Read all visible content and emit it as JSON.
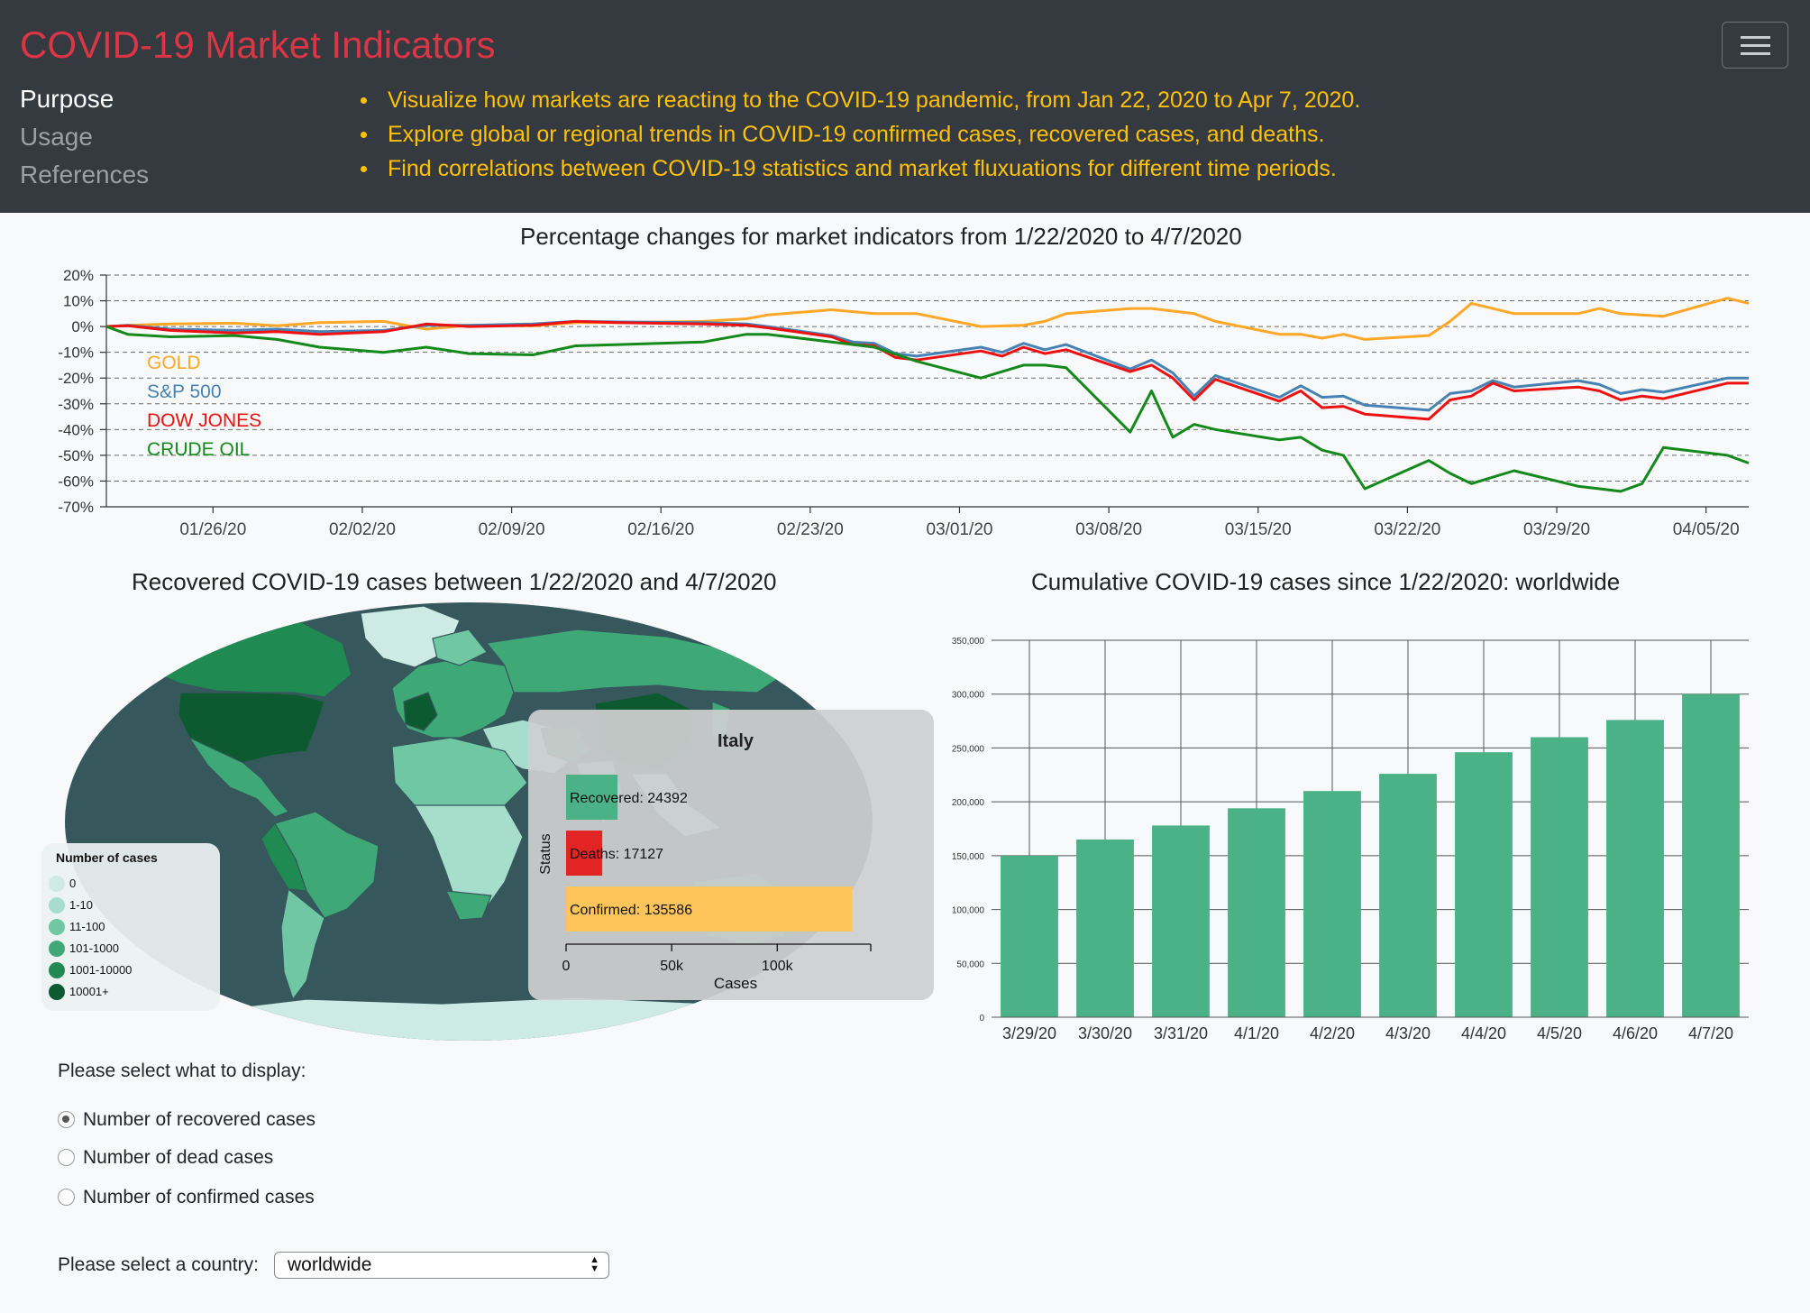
{
  "header": {
    "brand": "COVID-19 Market Indicators",
    "nav": [
      {
        "label": "Purpose",
        "active": true
      },
      {
        "label": "Usage",
        "active": false
      },
      {
        "label": "References",
        "active": false
      }
    ],
    "bullets": [
      "Visualize how markets are reacting to the COVID-19 pandemic, from Jan 22, 2020 to Apr 7, 2020.",
      "Explore global or regional trends in COVID-19 confirmed cases, recovered cases, and deaths.",
      "Find correlations between COVID-19 statistics and market fluxuations for different time periods."
    ],
    "menu_icon": "hamburger-icon"
  },
  "market_chart": {
    "title": "Percentage changes for market indicators from 1/22/2020 to 4/7/2020"
  },
  "map_section": {
    "title": "Recovered COVID-19 cases between 1/22/2020 and 4/7/2020",
    "legend": {
      "title": "Number of cases",
      "items": [
        {
          "label": "0",
          "color": "#cdebe4"
        },
        {
          "label": "1-10",
          "color": "#a7ddcb"
        },
        {
          "label": "11-100",
          "color": "#6fc7a4"
        },
        {
          "label": "101-1000",
          "color": "#3ea877"
        },
        {
          "label": "1001-10000",
          "color": "#1f8a52"
        },
        {
          "label": "10001+",
          "color": "#0d5a30"
        }
      ]
    },
    "ocean_color": "#36575c"
  },
  "cumulative_chart": {
    "title": "Cumulative COVID-19 cases since 1/22/2020: worldwide"
  },
  "tooltip": {
    "country": "Italy"
  },
  "controls": {
    "display_prompt": "Please select what to display:",
    "options": [
      {
        "label": "Number of recovered cases",
        "checked": true
      },
      {
        "label": "Number of dead cases",
        "checked": false
      },
      {
        "label": "Number of confirmed cases",
        "checked": false
      }
    ],
    "country_prompt": "Please select a country:",
    "country_value": "worldwide"
  },
  "chart_data": [
    {
      "type": "line",
      "title": "Percentage changes for market indicators from 1/22/2020 to 4/7/2020",
      "xlabel": "",
      "ylabel": "",
      "ylim": [
        -70,
        20
      ],
      "yticks": [
        "20%",
        "10%",
        "0%",
        "-10%",
        "-20%",
        "-30%",
        "-40%",
        "-50%",
        "-60%",
        "-70%"
      ],
      "xticks": [
        "01/26/20",
        "02/02/20",
        "02/09/20",
        "02/16/20",
        "02/23/20",
        "03/01/20",
        "03/08/20",
        "03/15/20",
        "03/22/20",
        "03/29/20",
        "04/05/20"
      ],
      "xrange": [
        "2020-01-21",
        "2020-04-07"
      ],
      "grid": "horizontal-dashed",
      "legend_position": "left, inside plot",
      "series": [
        {
          "name": "GOLD",
          "color": "#ffa726",
          "x": [
            "2020-01-21",
            "2020-01-22",
            "2020-01-24",
            "2020-01-27",
            "2020-01-29",
            "2020-01-31",
            "2020-02-03",
            "2020-02-05",
            "2020-02-07",
            "2020-02-10",
            "2020-02-12",
            "2020-02-14",
            "2020-02-18",
            "2020-02-20",
            "2020-02-21",
            "2020-02-24",
            "2020-02-26",
            "2020-02-28",
            "2020-03-02",
            "2020-03-04",
            "2020-03-05",
            "2020-03-06",
            "2020-03-09",
            "2020-03-10",
            "2020-03-12",
            "2020-03-13",
            "2020-03-16",
            "2020-03-17",
            "2020-03-18",
            "2020-03-19",
            "2020-03-20",
            "2020-03-23",
            "2020-03-24",
            "2020-03-25",
            "2020-03-27",
            "2020-03-30",
            "2020-03-31",
            "2020-04-01",
            "2020-04-03",
            "2020-04-06",
            "2020-04-07"
          ],
          "y": [
            0,
            0.5,
            1,
            1.3,
            0.3,
            1.5,
            2,
            -1,
            0.5,
            0.3,
            1.5,
            1.5,
            2,
            3,
            4.5,
            6.5,
            5,
            5,
            0,
            0.5,
            2,
            5,
            7,
            7,
            5,
            2,
            -3,
            -3,
            -4.5,
            -3,
            -5,
            -3.5,
            2,
            9,
            5,
            5,
            7,
            5,
            4,
            11,
            9
          ]
        },
        {
          "name": "S&P 500",
          "color": "#4682b4",
          "x": [
            "2020-01-21",
            "2020-01-22",
            "2020-01-24",
            "2020-01-27",
            "2020-01-29",
            "2020-01-31",
            "2020-02-03",
            "2020-02-05",
            "2020-02-07",
            "2020-02-10",
            "2020-02-12",
            "2020-02-14",
            "2020-02-18",
            "2020-02-20",
            "2020-02-21",
            "2020-02-24",
            "2020-02-25",
            "2020-02-26",
            "2020-02-27",
            "2020-02-28",
            "2020-03-02",
            "2020-03-03",
            "2020-03-04",
            "2020-03-05",
            "2020-03-06",
            "2020-03-09",
            "2020-03-10",
            "2020-03-11",
            "2020-03-12",
            "2020-03-13",
            "2020-03-16",
            "2020-03-17",
            "2020-03-18",
            "2020-03-19",
            "2020-03-20",
            "2020-03-23",
            "2020-03-24",
            "2020-03-25",
            "2020-03-26",
            "2020-03-27",
            "2020-03-30",
            "2020-03-31",
            "2020-04-01",
            "2020-04-02",
            "2020-04-03",
            "2020-04-06",
            "2020-04-07"
          ],
          "y": [
            0,
            0.5,
            -1,
            -1.5,
            -1,
            -2,
            -1.5,
            0.5,
            0.5,
            1,
            2,
            1.8,
            1.5,
            1,
            0,
            -3.5,
            -6,
            -6.5,
            -10.5,
            -11.5,
            -8,
            -10,
            -6.5,
            -9,
            -7,
            -16.5,
            -13,
            -18,
            -27,
            -19,
            -27.5,
            -23,
            -27.5,
            -27,
            -30.5,
            -32.5,
            -26,
            -25,
            -21,
            -23.5,
            -21,
            -22.5,
            -26,
            -24.5,
            -25.5,
            -20,
            -20
          ]
        },
        {
          "name": "DOW JONES",
          "color": "#ee1111",
          "x": [
            "2020-01-21",
            "2020-01-22",
            "2020-01-24",
            "2020-01-27",
            "2020-01-29",
            "2020-01-31",
            "2020-02-03",
            "2020-02-05",
            "2020-02-07",
            "2020-02-10",
            "2020-02-12",
            "2020-02-14",
            "2020-02-18",
            "2020-02-20",
            "2020-02-21",
            "2020-02-24",
            "2020-02-25",
            "2020-02-26",
            "2020-02-27",
            "2020-02-28",
            "2020-03-02",
            "2020-03-03",
            "2020-03-04",
            "2020-03-05",
            "2020-03-06",
            "2020-03-09",
            "2020-03-10",
            "2020-03-11",
            "2020-03-12",
            "2020-03-13",
            "2020-03-16",
            "2020-03-17",
            "2020-03-18",
            "2020-03-19",
            "2020-03-20",
            "2020-03-23",
            "2020-03-24",
            "2020-03-25",
            "2020-03-26",
            "2020-03-27",
            "2020-03-30",
            "2020-03-31",
            "2020-04-01",
            "2020-04-02",
            "2020-04-03",
            "2020-04-06",
            "2020-04-07"
          ],
          "y": [
            0,
            0.3,
            -1.5,
            -2.5,
            -2,
            -3,
            -2,
            1,
            0,
            0.5,
            2,
            1.5,
            1,
            0.5,
            -0.5,
            -4,
            -7,
            -7.5,
            -12,
            -13,
            -9.5,
            -11.5,
            -8,
            -10.5,
            -9,
            -17.5,
            -15,
            -20,
            -28.5,
            -20.5,
            -29,
            -25,
            -31.5,
            -31,
            -34,
            -36,
            -28.5,
            -27,
            -22,
            -25,
            -23.5,
            -25,
            -28.5,
            -27,
            -28,
            -22,
            -22
          ]
        },
        {
          "name": "CRUDE OIL",
          "color": "#138a1b",
          "x": [
            "2020-01-21",
            "2020-01-22",
            "2020-01-24",
            "2020-01-27",
            "2020-01-29",
            "2020-01-31",
            "2020-02-03",
            "2020-02-05",
            "2020-02-07",
            "2020-02-10",
            "2020-02-12",
            "2020-02-14",
            "2020-02-18",
            "2020-02-20",
            "2020-02-21",
            "2020-02-24",
            "2020-02-26",
            "2020-02-28",
            "2020-03-02",
            "2020-03-04",
            "2020-03-05",
            "2020-03-06",
            "2020-03-09",
            "2020-03-10",
            "2020-03-11",
            "2020-03-12",
            "2020-03-13",
            "2020-03-16",
            "2020-03-17",
            "2020-03-18",
            "2020-03-19",
            "2020-03-20",
            "2020-03-23",
            "2020-03-24",
            "2020-03-25",
            "2020-03-27",
            "2020-03-30",
            "2020-03-31",
            "2020-04-01",
            "2020-04-02",
            "2020-04-03",
            "2020-04-06",
            "2020-04-07"
          ],
          "y": [
            0,
            -3,
            -4,
            -3.5,
            -5,
            -8,
            -10,
            -8,
            -10.5,
            -11,
            -7.5,
            -7,
            -6,
            -3,
            -3,
            -6,
            -8,
            -13.5,
            -20,
            -15,
            -15,
            -16,
            -41,
            -25,
            -43,
            -38,
            -40,
            -44,
            -43,
            -48,
            -50,
            -63,
            -52,
            -57,
            -61,
            -56,
            -62,
            -63,
            -64,
            -61,
            -47,
            -50,
            -53
          ]
        }
      ]
    },
    {
      "type": "bar",
      "title": "Cumulative COVID-19 cases since 1/22/2020: worldwide",
      "categories": [
        "3/29/20",
        "3/30/20",
        "3/31/20",
        "4/1/20",
        "4/2/20",
        "4/3/20",
        "4/4/20",
        "4/5/20",
        "4/6/20",
        "4/7/20"
      ],
      "values": [
        150000,
        165000,
        178000,
        194000,
        210000,
        226000,
        246000,
        260000,
        276000,
        300000
      ],
      "ylim": [
        0,
        350000
      ],
      "yticks": [
        "0",
        "50,000",
        "100,000",
        "150,000",
        "200,000",
        "250,000",
        "300,000",
        "350,000"
      ],
      "color": "#4ab286",
      "grid": true
    },
    {
      "type": "bar",
      "orientation": "horizontal",
      "title": "Italy",
      "xlabel": "Cases",
      "ylabel": "Status",
      "categories": [
        "Recovered",
        "Deaths",
        "Confirmed"
      ],
      "values": [
        24392,
        17127,
        135586
      ],
      "colors": [
        "#4ab286",
        "#e32424",
        "#ffc55a"
      ],
      "xticks": [
        "0",
        "50k",
        "100k"
      ],
      "xlim": [
        0,
        140000
      ]
    }
  ]
}
